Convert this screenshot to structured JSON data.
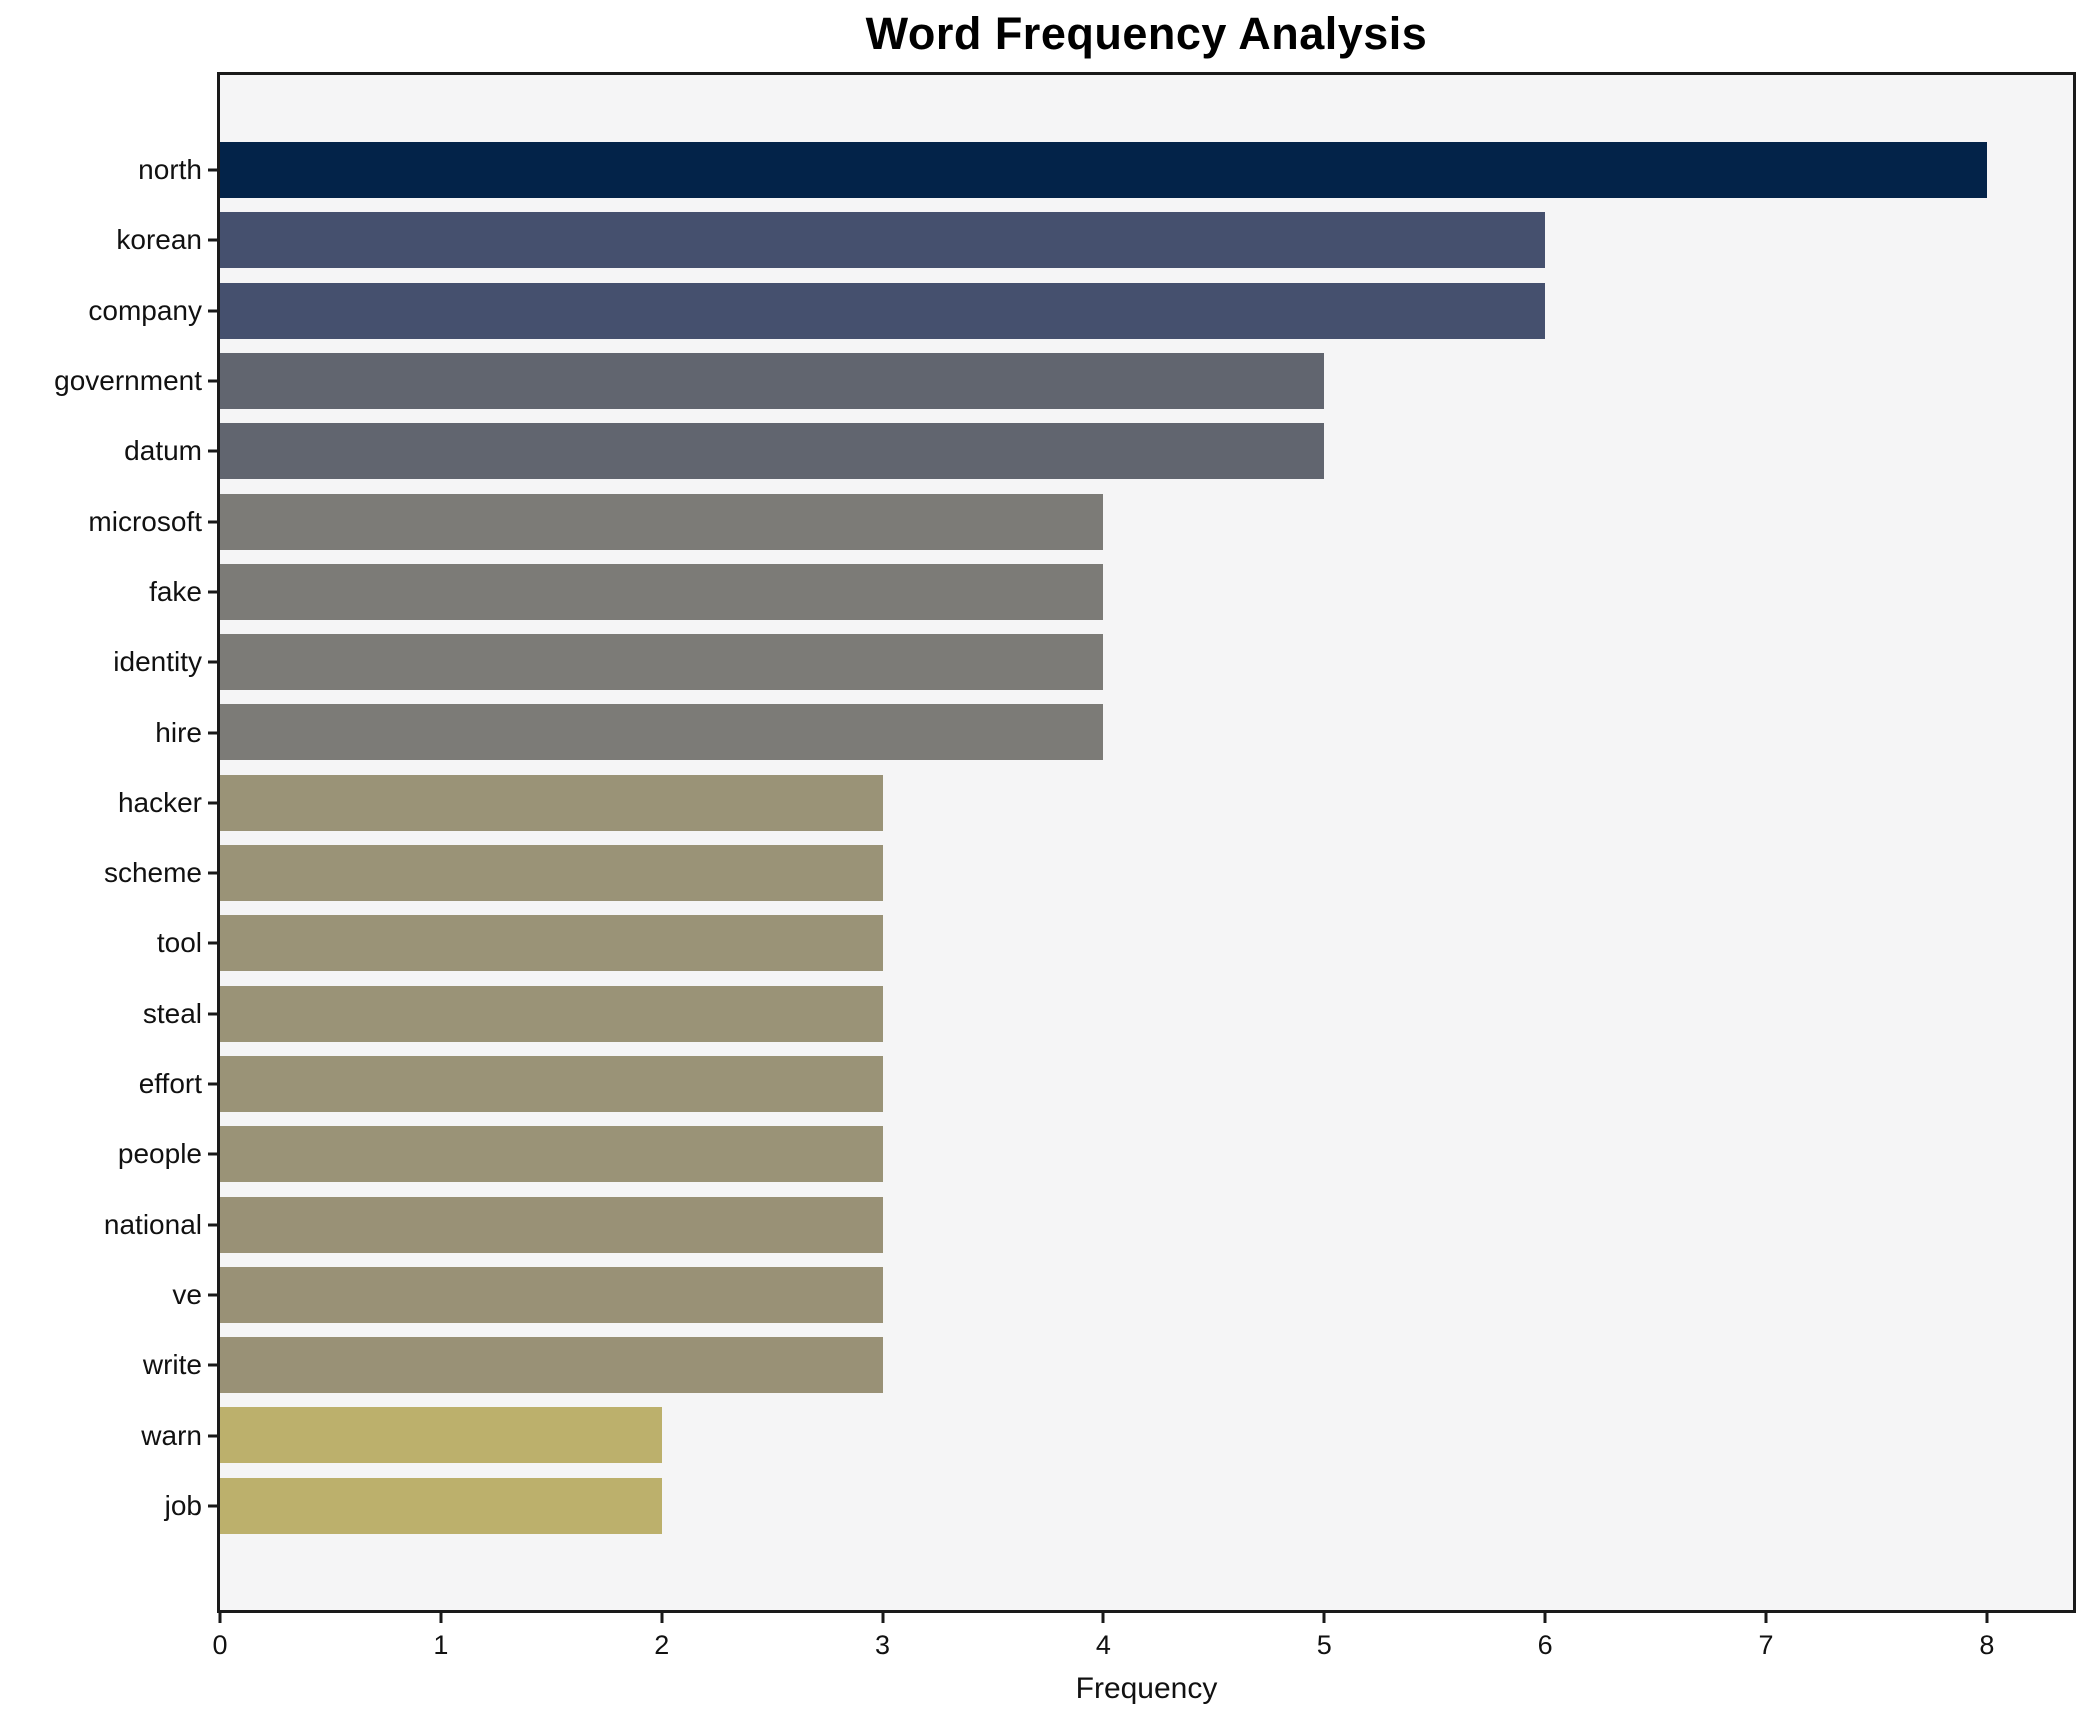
{
  "chart_data": {
    "type": "bar",
    "orientation": "horizontal",
    "title": "Word Frequency Analysis",
    "xlabel": "Frequency",
    "ylabel": "",
    "grid": false,
    "legend_position": "none",
    "plot_background": "#f5f5f6",
    "spine_color": "#1a1a1a",
    "xlim": [
      0,
      8.39
    ],
    "x_ticks": [
      0,
      1,
      2,
      3,
      4,
      5,
      6,
      7,
      8
    ],
    "categories": [
      "north",
      "korean",
      "company",
      "government",
      "datum",
      "microsoft",
      "fake",
      "identity",
      "hire",
      "hacker",
      "scheme",
      "tool",
      "steal",
      "effort",
      "people",
      "national",
      "ve",
      "write",
      "warn",
      "job"
    ],
    "values": [
      8,
      6,
      6,
      5,
      5,
      4,
      4,
      4,
      4,
      3,
      3,
      3,
      3,
      3,
      3,
      3,
      3,
      3,
      2,
      2
    ],
    "bar_colors": [
      "#032349",
      "#45506e",
      "#45506e",
      "#61656f",
      "#61656f",
      "#7c7b77",
      "#7c7b77",
      "#7c7b77",
      "#7c7b77",
      "#9a9377",
      "#9a9377",
      "#9a9377",
      "#9a9377",
      "#9a9377",
      "#9a9377",
      "#999176",
      "#999176",
      "#999176",
      "#bcb06c",
      "#bcb06c"
    ]
  }
}
